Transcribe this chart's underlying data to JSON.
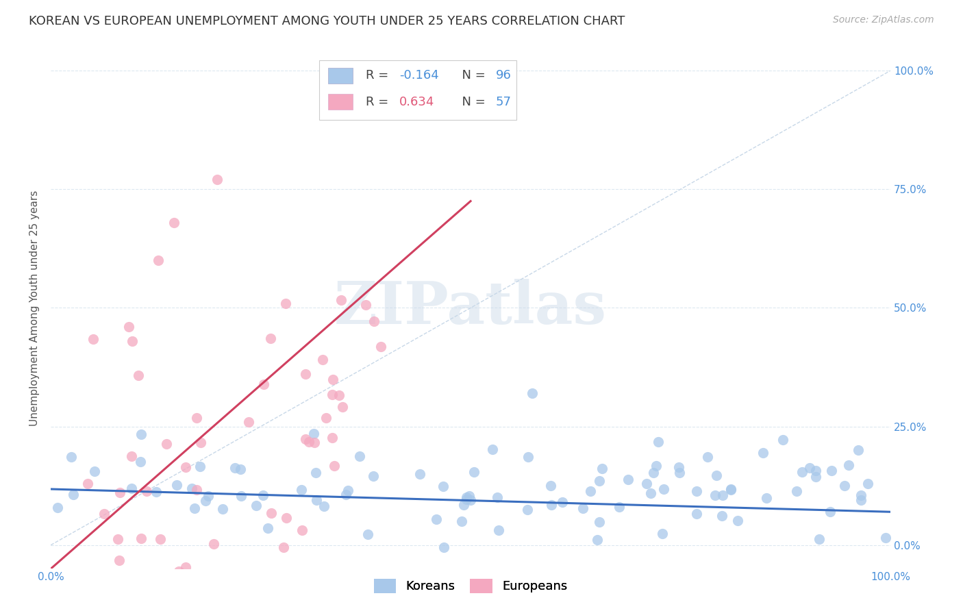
{
  "title": "KOREAN VS EUROPEAN UNEMPLOYMENT AMONG YOUTH UNDER 25 YEARS CORRELATION CHART",
  "source": "Source: ZipAtlas.com",
  "ylabel": "Unemployment Among Youth under 25 years",
  "xlim": [
    0,
    1
  ],
  "ylim": [
    -0.05,
    1.05
  ],
  "xtick_positions": [
    0.0,
    0.25,
    0.5,
    0.75,
    1.0
  ],
  "xticklabels": [
    "0.0%",
    "",
    "",
    "",
    "100.0%"
  ],
  "ytick_positions": [
    0.0,
    0.25,
    0.5,
    0.75,
    1.0
  ],
  "ytick_labels_right": [
    "0.0%",
    "25.0%",
    "50.0%",
    "75.0%",
    "100.0%"
  ],
  "korean_R": -0.164,
  "korean_N": 96,
  "european_R": 0.634,
  "european_N": 57,
  "korean_color": "#a8c8ea",
  "european_color": "#f4a8c0",
  "korean_line_color": "#3a6ebf",
  "european_line_color": "#d04060",
  "diagonal_color": "#c8d8e8",
  "watermark": "ZIPatlas",
  "background_color": "#ffffff",
  "grid_color": "#dce8f0",
  "title_fontsize": 13,
  "label_fontsize": 11,
  "tick_fontsize": 11,
  "legend_fontsize": 13,
  "source_fontsize": 10,
  "korean_line_intercept": 0.118,
  "korean_line_slope": -0.048,
  "european_line_intercept": -0.05,
  "european_line_slope": 1.55
}
